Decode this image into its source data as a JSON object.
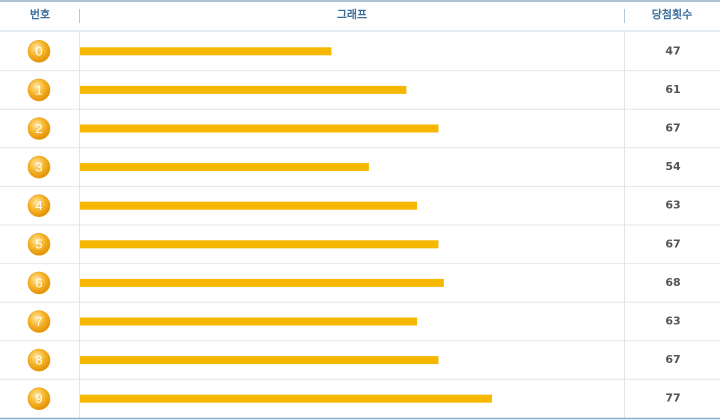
{
  "chart_data": {
    "type": "bar",
    "orientation": "horizontal",
    "columns": [
      "번호",
      "그래프",
      "당첨횟수"
    ],
    "categories": [
      "0",
      "1",
      "2",
      "3",
      "4",
      "5",
      "6",
      "7",
      "8",
      "9"
    ],
    "values": [
      47,
      61,
      67,
      54,
      63,
      67,
      68,
      63,
      67,
      77
    ],
    "color": "#f6b700"
  }
}
